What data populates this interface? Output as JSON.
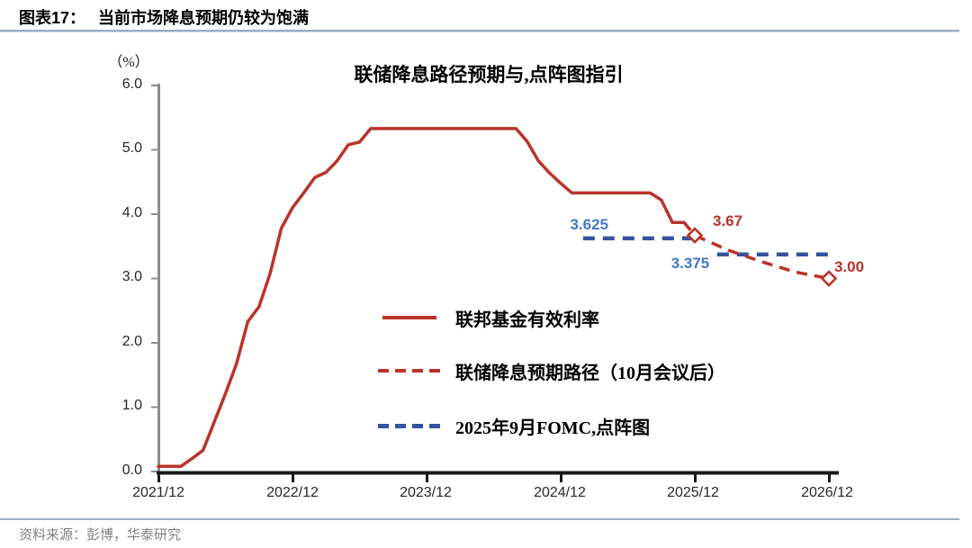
{
  "figure": {
    "label": "图表17：",
    "title": "当前市场降息预期仍较为饱满"
  },
  "footer": {
    "source_text": "资料来源：彭博，华泰研究"
  },
  "chart_data": {
    "type": "line",
    "title": "联储降息路径预期与,点阵图指引",
    "unit_label": "（%）",
    "ylim": [
      0,
      6
    ],
    "y_tick_labels": [
      "6.0",
      "5.0",
      "4.0",
      "3.0",
      "2.0",
      "1.0",
      "0.0"
    ],
    "x_tick_labels": [
      "2021/12",
      "2022/12",
      "2023/12",
      "2024/12",
      "2025/12",
      "2026/12"
    ],
    "x_tick_months": [
      0,
      12,
      24,
      36,
      48,
      60
    ],
    "x_start": "2021/12",
    "grid": "off",
    "legend_position": "center-right",
    "colors": {
      "red": "#BA332B",
      "blue_dash": "#36539F",
      "blue_label": "#4377C6",
      "y_axis": "#8C8C8C",
      "x_axis": "#1A1A1A",
      "rule": "#9BACC6"
    },
    "legend": [
      "联邦基金有效利率",
      "联储降息预期路径（10月会议后）",
      "2025年9月FOMC,点阵图"
    ],
    "series": [
      {
        "name": "联邦基金有效利率",
        "style": "solid",
        "color_key": "red",
        "start_month": 0,
        "monthly_values": [
          0.08,
          0.08,
          0.08,
          0.2,
          0.33,
          0.77,
          1.21,
          1.68,
          2.33,
          2.56,
          3.08,
          3.78,
          4.1,
          4.33,
          4.57,
          4.65,
          4.83,
          5.08,
          5.12,
          5.33,
          5.33,
          5.33,
          5.33,
          5.33,
          5.33,
          5.33,
          5.33,
          5.33,
          5.33,
          5.33,
          5.33,
          5.33,
          5.33,
          5.13,
          4.83,
          4.64,
          4.48,
          4.33,
          4.33,
          4.33,
          4.33,
          4.33,
          4.33,
          4.33,
          4.33,
          4.22,
          3.87,
          3.87
        ]
      },
      {
        "name": "联储降息预期路径（10月会议后）",
        "style": "dashed",
        "color_key": "red",
        "points": [
          [
            47,
            3.88
          ],
          [
            48,
            3.67
          ],
          [
            51,
            3.44
          ],
          [
            54,
            3.26
          ],
          [
            57,
            3.1
          ],
          [
            60,
            3.0
          ]
        ],
        "markers": [
          [
            48,
            3.67
          ],
          [
            60,
            3.0
          ]
        ]
      },
      {
        "name": "2025年9月FOMC,点阵图",
        "style": "dashed",
        "color_key": "blue_dash",
        "segments": [
          [
            38,
            48.3,
            3.625
          ],
          [
            50,
            60,
            3.375
          ]
        ]
      }
    ],
    "annotations": [
      {
        "text": "3.625",
        "series": "2025年9月FOMC,点阵图",
        "value": 3.625,
        "color": "blue"
      },
      {
        "text": "3.375",
        "series": "2025年9月FOMC,点阵图",
        "value": 3.375,
        "color": "blue"
      },
      {
        "text": "3.67",
        "series": "联储降息预期路径（10月会议后）",
        "value": 3.67,
        "color": "red"
      },
      {
        "text": "3.00",
        "series": "联储降息预期路径（10月会议后）",
        "value": 3.0,
        "color": "red"
      }
    ]
  }
}
